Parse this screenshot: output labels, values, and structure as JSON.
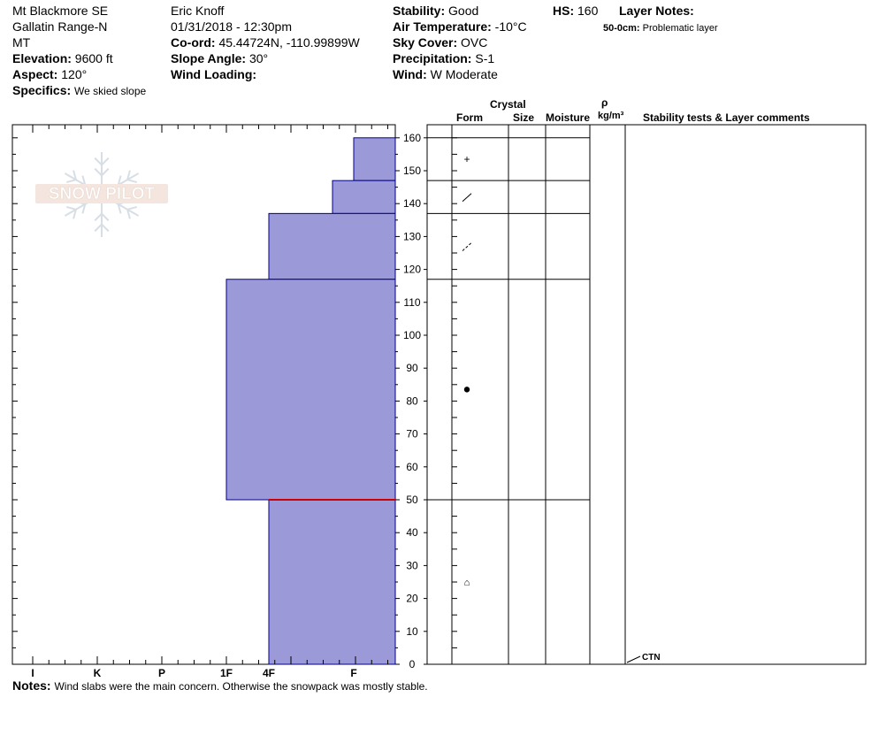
{
  "header": {
    "location_name": "Mt Blackmore SE",
    "range": "Gallatin Range-N",
    "state": "MT",
    "elevation_label": "Elevation:",
    "elevation_value": "9600 ft",
    "aspect_label": "Aspect:",
    "aspect_value": "120°",
    "specifics_label": "Specifics:",
    "specifics_value": "We skied slope",
    "observer": "Eric Knoff",
    "datetime": "01/31/2018 - 12:30pm",
    "coord_label": "Co-ord:",
    "coord_value": "45.44724N, -110.99899W",
    "slope_label": "Slope Angle:",
    "slope_value": "30°",
    "wind_loading_label": "Wind Loading:",
    "wind_loading_value": "",
    "stability_label": "Stability:",
    "stability_value": "Good",
    "air_temp_label": "Air Temperature:",
    "air_temp_value": "-10°C",
    "sky_label": "Sky Cover:",
    "sky_value": "OVC",
    "precip_label": "Precipitation:",
    "precip_value": "S-1",
    "wind_label": "Wind:",
    "wind_value": "W Moderate",
    "hs_label": "HS:",
    "hs_value": "160",
    "layer_notes_label": "Layer Notes:",
    "layer_note_depth": "50-0cm:",
    "layer_note_text": "Problematic layer"
  },
  "logo_text": "SNOW PILOT",
  "columns": {
    "crystal": "Crystal",
    "form": "Form",
    "size": "Size",
    "moisture": "Moisture",
    "rho": "ρ",
    "density_unit": "kg/m³",
    "stability": "Stability tests & Layer comments"
  },
  "notes": {
    "label": "Notes:",
    "text": "Wind slabs were the main concern. Otherwise the snowpack was mostly stable."
  },
  "chart_data": {
    "type": "bar",
    "title": "",
    "xlabel": "",
    "ylabel": "",
    "hardness_scale": [
      "I",
      "K",
      "P",
      "1F",
      "4F",
      "F"
    ],
    "y_ticks": [
      0,
      10,
      20,
      30,
      40,
      50,
      60,
      70,
      80,
      90,
      100,
      110,
      120,
      130,
      140,
      150,
      160
    ],
    "ylim": [
      0,
      163
    ],
    "fill_color": "#9b99d8",
    "outline_color": "#00007f",
    "weak_layer_color": "#cc0000",
    "weak_layer_depth": 50,
    "layer_boundaries": [
      160,
      147,
      137,
      117,
      50,
      0
    ],
    "layers": [
      {
        "top": 160,
        "bottom": 147,
        "hardness": "F",
        "grain": "+",
        "grain_name": "precipitation-particles"
      },
      {
        "top": 147,
        "bottom": 137,
        "hardness": "F+",
        "grain": "/",
        "grain_name": "decomposing-fragments"
      },
      {
        "top": 137,
        "bottom": 117,
        "hardness": "4F",
        "grain": "/",
        "grain_name": "decomposing-fragments-dashed"
      },
      {
        "top": 117,
        "bottom": 50,
        "hardness": "1F",
        "grain": "●",
        "grain_name": "rounded-grains"
      },
      {
        "top": 50,
        "bottom": 0,
        "hardness": "4F",
        "grain": "⌂",
        "grain_name": "depth-hoar"
      }
    ],
    "stability_tests": [
      {
        "depth": 0,
        "result": "CTN"
      }
    ]
  }
}
